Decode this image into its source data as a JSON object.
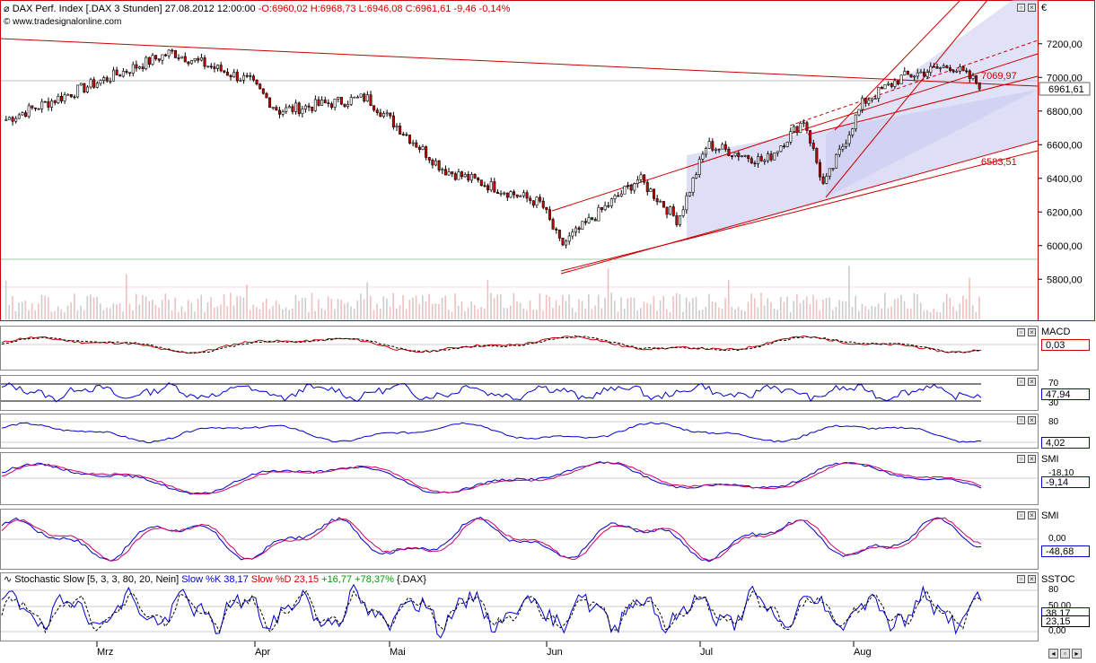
{
  "window": {
    "instrument": "DAX Perf. Index [.DAX  3 Stunden]",
    "datetime": "27.08.2012 12:00:00",
    "ohlc": "-O:6960,02 H:6968,73 L:6946,08 C:6961,61 -9,46 -0,14%",
    "copyright": "© www.tradesignalonline.com",
    "currency": "€"
  },
  "price_axis": {
    "ticks": [
      "7200,00",
      "7000,00",
      "6800,00",
      "6600,00",
      "6400,00",
      "6200,00",
      "6000,00",
      "5800,00"
    ],
    "last_price": "6961,61",
    "label_upper": "7069,97",
    "label_lower": "6583,51"
  },
  "panes": {
    "macd": {
      "label": "MACD",
      "value": "0,03"
    },
    "rsi": {
      "level_high": "70",
      "value": "47,94",
      "level_low": "30"
    },
    "osc3": {
      "level_high": "80",
      "value": "4,02"
    },
    "smi1": {
      "label": "SMI",
      "level": "-18,10",
      "value": "-9,14"
    },
    "smi2": {
      "label": "SMI",
      "level": "0,00",
      "value": "-48,68"
    },
    "stoch": {
      "label": "SSTOC",
      "level_high": "80",
      "level_mid": "50,00",
      "k_value": "38,17",
      "d_value": "23,15",
      "level_low": "0,00",
      "name": "Stochastic Slow",
      "params": "[5, 3, 3, 80, 20, Nein]",
      "k_text": "Slow %K 38,17",
      "d_text": "Slow %D 23,15",
      "change": "+16,77 +78,37%",
      "symbol": "{.DAX}"
    }
  },
  "months": [
    "Mrz",
    "Apr",
    "Mai",
    "Jun",
    "Jul",
    "Aug"
  ],
  "chart_data": {
    "type": "line",
    "x": [
      "Mrz",
      "Apr",
      "Mai",
      "Jun",
      "Jul",
      "Aug"
    ],
    "series": [
      {
        "values": [
          6750,
          6980,
          6650,
          6000,
          6420,
          6960
        ]
      }
    ],
    "ylim": [
      5700,
      7300
    ],
    "trendlines": {
      "upper_label": "7069,97",
      "lower_label": "6583,51"
    }
  },
  "colors": {
    "frame": "#cc0000",
    "up_candle": "#ffffff",
    "down_candle": "#cc0000",
    "channel_fill": "#c8c8f0",
    "indicator_main": "#0000cc",
    "indicator_signal": "#cc0000"
  }
}
